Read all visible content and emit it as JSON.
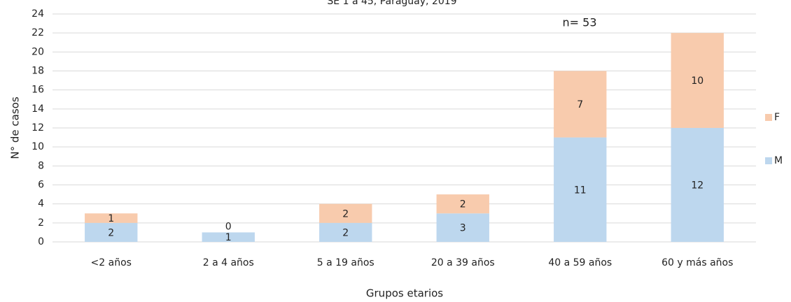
{
  "chart_data": {
    "type": "stacked_bar",
    "title": "SE 1 a 45, Paraguay, 2019",
    "annotation": "n= 53",
    "x_label": "Grupos etarios",
    "y_label": "N° de casos",
    "categories": [
      "<2 años",
      "2 a 4 años",
      "5 a 19 años",
      "20 a 39 años",
      "40 a 59 años",
      "60 y más años"
    ],
    "series": [
      {
        "name": "M",
        "color": "#bdd7ee",
        "values": [
          2,
          1,
          2,
          3,
          11,
          12
        ]
      },
      {
        "name": "F",
        "color": "#f8cbad",
        "values": [
          1,
          0,
          2,
          2,
          7,
          10
        ]
      }
    ],
    "ylim": [
      0,
      24
    ],
    "yticks": [
      0,
      2,
      4,
      6,
      8,
      10,
      12,
      14,
      16,
      18,
      20,
      22,
      24
    ],
    "grid": true,
    "legend": "right"
  }
}
